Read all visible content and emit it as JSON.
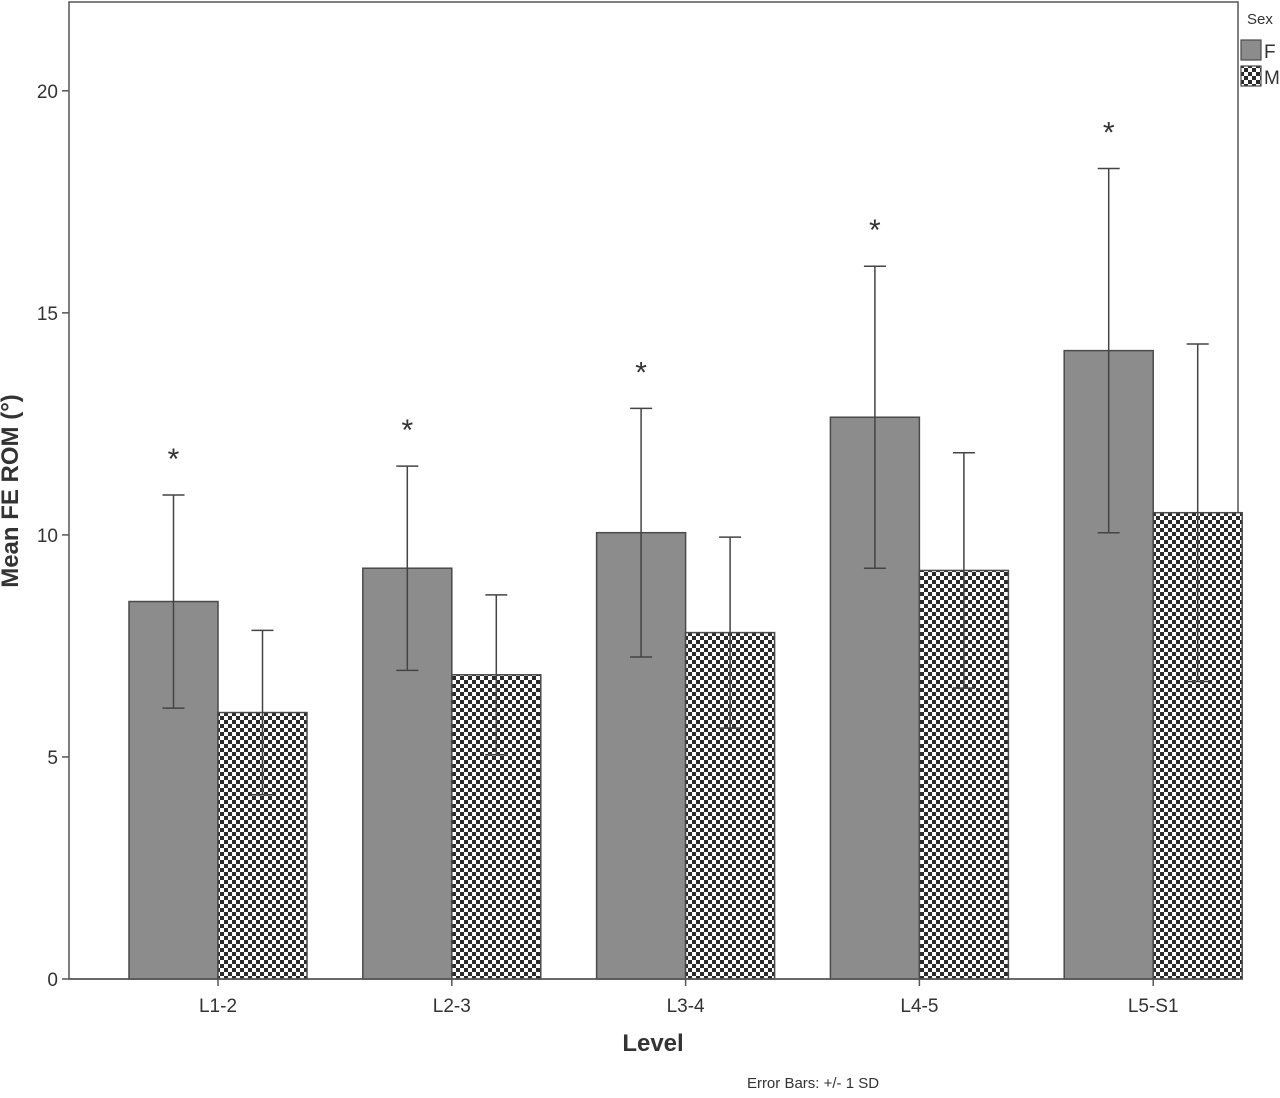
{
  "chart_data": {
    "type": "bar",
    "categories": [
      "L1-2",
      "L2-3",
      "L3-4",
      "L4-5",
      "L5-S1"
    ],
    "series": [
      {
        "name": "F",
        "values": [
          8.5,
          9.25,
          10.05,
          12.65,
          14.15
        ],
        "error_sd": [
          2.4,
          2.3,
          2.8,
          3.4,
          4.1
        ],
        "fill": "pattern-solid",
        "color": "#8c8c8c"
      },
      {
        "name": "M",
        "values": [
          6.0,
          6.85,
          7.8,
          9.2,
          10.5
        ],
        "error_sd": [
          1.85,
          1.8,
          2.15,
          2.65,
          3.8
        ],
        "fill": "pattern-checker",
        "color": "#2b2b2b"
      }
    ],
    "significance_marker": "*",
    "significant_categories": [
      0,
      1,
      2,
      3,
      4
    ],
    "xlabel": "Level",
    "ylabel": "Mean FE ROM (°)",
    "ylim": [
      0,
      22
    ],
    "yticks": [
      0,
      5,
      10,
      15,
      20
    ],
    "grid": false,
    "legend": {
      "title": "Sex",
      "placement": "top-right",
      "entries": [
        "F",
        "M"
      ]
    },
    "footnote": "Error Bars: +/- 1 SD"
  },
  "colors": {
    "axis": "#555555",
    "bar_outline": "#4a4a4a",
    "text": "#333333"
  }
}
